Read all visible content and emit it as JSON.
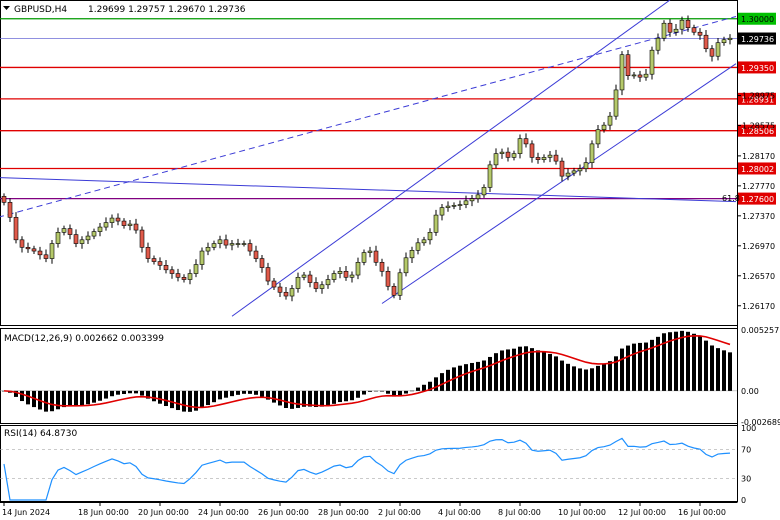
{
  "header": {
    "symbol_label": "GBPUSD,H4",
    "ohlc_label": "1.29699 1.29757 1.29670 1.29736",
    "menu_icon": "triangle-down-icon"
  },
  "colors": {
    "up_candle": "#b5c96a",
    "down_candle": "#e05a4a",
    "wick": "#000000",
    "resistance": "#e00000",
    "channel": "#3b3bd6",
    "macd_hist": "#000000",
    "macd_signal": "#e00000",
    "rsi_line": "#1e90ff",
    "level_badge": "#e00000",
    "current_badge": "#000000"
  },
  "chart_data": {
    "type": "candlestick",
    "instrument": "GBPUSD",
    "timeframe": "H4",
    "price_axis": {
      "ylim": [
        1.259,
        1.3025
      ],
      "ticks": [
        "1.28975",
        "1.28575",
        "1.28170",
        "1.27770",
        "1.27370",
        "1.26970",
        "1.26570",
        "1.26170"
      ]
    },
    "time_axis": {
      "labels": [
        "14 Jun 2024",
        "18 Jun 00:00",
        "20 Jun 00:00",
        "24 Jun 00:00",
        "26 Jun 00:00",
        "28 Jun 00:00",
        "2 Jul 00:00",
        "4 Jul 00:00",
        "8 Jul 00:00",
        "10 Jul 00:00",
        "12 Jul 00:00",
        "16 Jul 00:00"
      ],
      "label_bar_index": [
        0,
        16,
        26,
        36,
        46,
        56,
        66,
        76,
        86,
        96,
        106,
        116
      ]
    },
    "current_price": "1.29736",
    "levels": [
      {
        "label": "1.30000",
        "value": 1.3,
        "color": "#009a00"
      },
      {
        "label": "1.29350",
        "value": 1.2935,
        "color": "#e00000"
      },
      {
        "label": "1.28931",
        "value": 1.28931,
        "color": "#e00000"
      },
      {
        "label": "1.28506",
        "value": 1.28506,
        "color": "#e00000"
      },
      {
        "label": "1.28002",
        "value": 1.28002,
        "color": "#e00000"
      },
      {
        "label": "1.27600",
        "value": 1.276,
        "color": "#800080"
      }
    ],
    "fib_label": "61.8",
    "closes": [
      1.2755,
      1.2735,
      1.2705,
      1.2695,
      1.2693,
      1.269,
      1.2685,
      1.268,
      1.27,
      1.2715,
      1.272,
      1.2712,
      1.27,
      1.2705,
      1.271,
      1.2716,
      1.2722,
      1.2728,
      1.2734,
      1.273,
      1.2724,
      1.2726,
      1.2718,
      1.2695,
      1.268,
      1.2676,
      1.2671,
      1.2665,
      1.266,
      1.2655,
      1.2652,
      1.266,
      1.2672,
      1.269,
      1.2695,
      1.27,
      1.2705,
      1.2698,
      1.27,
      1.27,
      1.27,
      1.269,
      1.268,
      1.2668,
      1.265,
      1.2642,
      1.2635,
      1.263,
      1.264,
      1.2655,
      1.2658,
      1.2648,
      1.264,
      1.2645,
      1.2652,
      1.266,
      1.2663,
      1.2655,
      1.2658,
      1.2675,
      1.2688,
      1.269,
      1.2675,
      1.2663,
      1.2643,
      1.2631,
      1.2661,
      1.2681,
      1.2691,
      1.2701,
      1.2705,
      1.2715,
      1.2738,
      1.2748,
      1.275,
      1.2751,
      1.2752,
      1.2757,
      1.276,
      1.2765,
      1.2775,
      1.2805,
      1.282,
      1.2822,
      1.2815,
      1.282,
      1.284,
      1.2833,
      1.2815,
      1.2812,
      1.2815,
      1.2818,
      1.281,
      1.279,
      1.2794,
      1.2797,
      1.28,
      1.2808,
      1.2833,
      1.2852,
      1.2858,
      1.287,
      1.2905,
      1.2952,
      1.2924,
      1.2925,
      1.2922,
      1.2926,
      1.2958,
      1.2974,
      1.2994,
      1.2982,
      1.2986,
      1.2998,
      1.2988,
      1.2982,
      1.2978,
      1.296,
      1.295,
      1.2968,
      1.2972,
      1.2974
    ],
    "indicators": [
      {
        "name": "MACD",
        "label": "MACD(12,26,9) 0.002662 0.003399",
        "params": "12,26,9",
        "values": [
          0.002662,
          0.003399
        ],
        "ylim": [
          -0.002689,
          0.005257
        ],
        "ticks": [
          "0.005257",
          "0.00",
          "-0.002689"
        ]
      },
      {
        "name": "RSI",
        "label": "RSI(14) 64.8730",
        "period": 14,
        "value": 64.873,
        "ylim": [
          0,
          100
        ],
        "ticks": [
          "100",
          "70",
          "30",
          "0"
        ]
      }
    ]
  }
}
